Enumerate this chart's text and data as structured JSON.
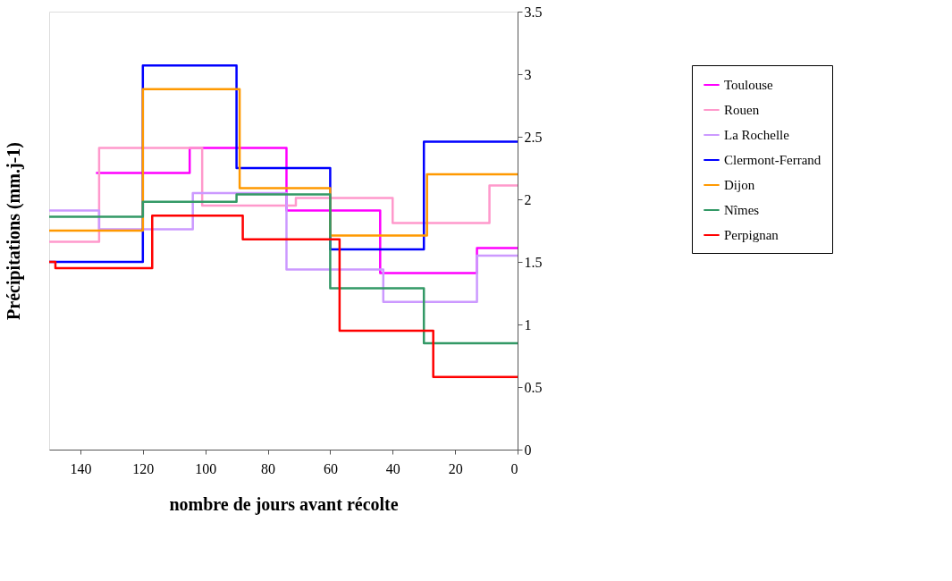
{
  "chart_data": {
    "type": "step",
    "xlabel": "nombre de jours avant récolte",
    "ylabel": "Précipitations (mm.j-1)",
    "xlim": [
      150,
      0
    ],
    "xticks": [
      140,
      120,
      100,
      80,
      60,
      40,
      20,
      0
    ],
    "ylim": [
      0,
      3.5
    ],
    "yticks": [
      0,
      0.5,
      1,
      1.5,
      2,
      2.5,
      3,
      3.5
    ],
    "grid": false,
    "legend": "right",
    "series": [
      {
        "name": "Toulouse",
        "color": "#ff00ff",
        "x": [
          135,
          105,
          74,
          44,
          13,
          0
        ],
        "values": [
          2.21,
          2.41,
          1.91,
          1.41,
          1.61,
          1.61
        ]
      },
      {
        "name": "Rouen",
        "color": "#ff99cc",
        "x": [
          150,
          134,
          101,
          71,
          40,
          9,
          0
        ],
        "values": [
          1.66,
          2.41,
          1.95,
          2.01,
          1.81,
          2.11,
          2.11
        ]
      },
      {
        "name": "La Rochelle",
        "color": "#cc99ff",
        "x": [
          150,
          134,
          104,
          74,
          43,
          13,
          0
        ],
        "values": [
          1.91,
          1.76,
          2.05,
          1.44,
          1.18,
          1.55,
          1.55
        ]
      },
      {
        "name": "Clermont-Ferrand",
        "color": "#0000ff",
        "x": [
          150,
          120,
          90,
          60,
          30,
          0
        ],
        "values": [
          1.5,
          3.07,
          2.25,
          1.6,
          2.46,
          2.46
        ]
      },
      {
        "name": "Dijon",
        "color": "#ff9900",
        "x": [
          150,
          120,
          89,
          60,
          29,
          0
        ],
        "values": [
          1.75,
          2.88,
          2.09,
          1.71,
          2.2,
          2.2
        ]
      },
      {
        "name": "Nîmes",
        "color": "#339966",
        "x": [
          150,
          120,
          90,
          60,
          30,
          0
        ],
        "values": [
          1.86,
          1.98,
          2.04,
          1.29,
          0.85,
          0.85
        ]
      },
      {
        "name": "Perpignan",
        "color": "#ff0000",
        "x": [
          150,
          148,
          117,
          88,
          57,
          27,
          0
        ],
        "values": [
          1.5,
          1.45,
          1.87,
          1.68,
          0.95,
          0.58,
          0.58
        ]
      }
    ]
  }
}
